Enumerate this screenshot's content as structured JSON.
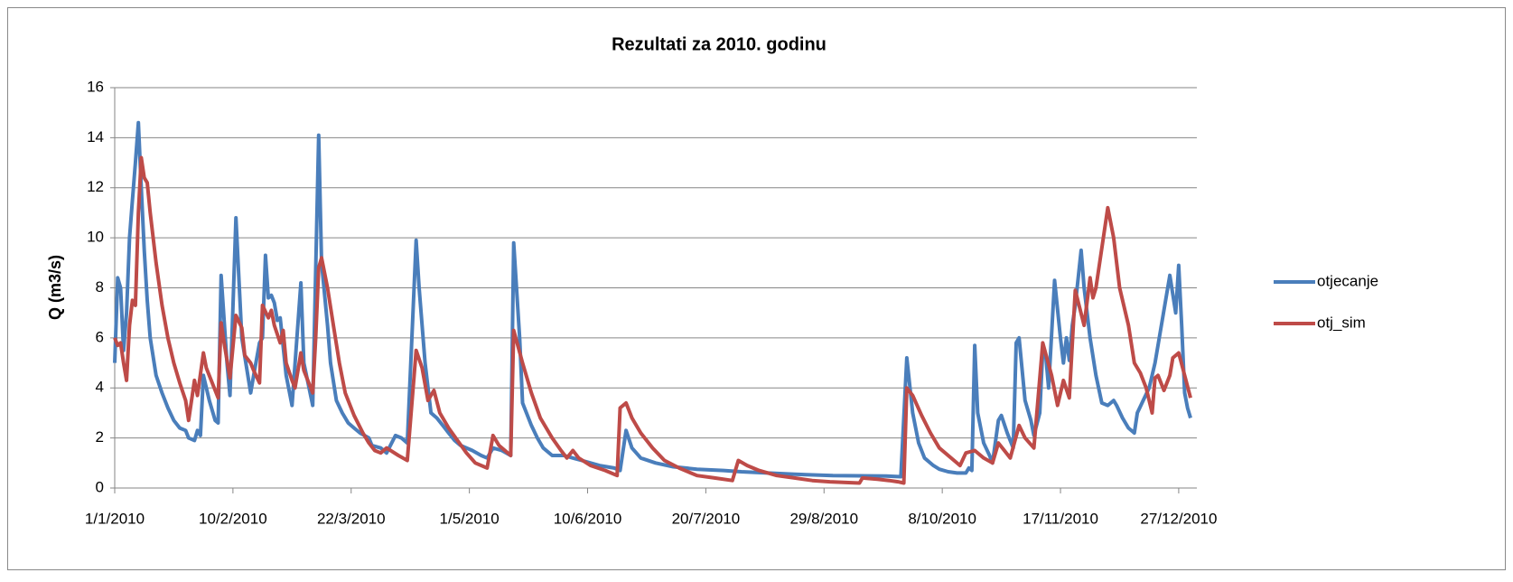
{
  "chart_data": {
    "type": "line",
    "title": "Rezultati za 2010. godinu",
    "y_label": "Q (m3/s)",
    "xlim": [
      "1/1/2010",
      "31/12/2010"
    ],
    "xticks": [
      "1/1/2010",
      "10/2/2010",
      "22/3/2010",
      "1/5/2010",
      "10/6/2010",
      "20/7/2010",
      "29/8/2010",
      "8/10/2010",
      "17/11/2010",
      "27/12/2010"
    ],
    "ylim": [
      0,
      16
    ],
    "yticks": [
      0,
      2,
      4,
      6,
      8,
      10,
      12,
      14,
      16
    ],
    "grid": true,
    "legend": "right",
    "series": [
      {
        "name": "otjecanje",
        "color": "#4a7ebb",
        "x": [
          "1/1/2010",
          "2/1/2010",
          "3/1/2010",
          "4/1/2010",
          "5/1/2010",
          "6/1/2010",
          "7/1/2010",
          "8/1/2010",
          "9/1/2010",
          "10/1/2010",
          "11/1/2010",
          "12/1/2010",
          "13/1/2010",
          "15/1/2010",
          "17/1/2010",
          "19/1/2010",
          "21/1/2010",
          "23/1/2010",
          "25/1/2010",
          "26/1/2010",
          "28/1/2010",
          "29/1/2010",
          "30/1/2010",
          "31/1/2010",
          "2/2/2010",
          "4/2/2010",
          "5/2/2010",
          "6/2/2010",
          "8/2/2010",
          "9/2/2010",
          "11/2/2010",
          "13/2/2010",
          "16/2/2010",
          "17/2/2010",
          "19/2/2010",
          "20/2/2010",
          "21/2/2010",
          "22/2/2010",
          "23/2/2010",
          "24/2/2010",
          "25/2/2010",
          "26/2/2010",
          "28/2/2010",
          "2/3/2010",
          "5/3/2010",
          "6/3/2010",
          "9/3/2010",
          "11/3/2010",
          "12/3/2010",
          "14/3/2010",
          "15/3/2010",
          "17/3/2010",
          "19/3/2010",
          "21/3/2010",
          "23/3/2010",
          "25/3/2010",
          "28/3/2010",
          "29/3/2010",
          "1/4/2010",
          "3/4/2010",
          "6/4/2010",
          "8/4/2010",
          "10/4/2010",
          "13/4/2010",
          "14/4/2010",
          "16/4/2010",
          "18/4/2010",
          "20/4/2010",
          "22/4/2010",
          "24/4/2010",
          "26/4/2010",
          "28/4/2010",
          "2/5/2010",
          "5/5/2010",
          "7/5/2010",
          "9/5/2010",
          "12/5/2010",
          "15/5/2010",
          "16/5/2010",
          "18/5/2010",
          "19/5/2010",
          "22/5/2010",
          "24/5/2010",
          "26/5/2010",
          "29/5/2010",
          "2/6/2010",
          "5/6/2010",
          "8/6/2010",
          "11/6/2010",
          "14/6/2010",
          "19/6/2010",
          "21/6/2010",
          "23/6/2010",
          "25/6/2010",
          "28/6/2010",
          "3/7/2010",
          "9/7/2010",
          "17/7/2010",
          "26/7/2010",
          "1/8/2010",
          "10/8/2010",
          "19/8/2010",
          "1/9/2010",
          "19/9/2010",
          "24/9/2010",
          "26/9/2010",
          "28/9/2010",
          "30/9/2010",
          "2/10/2010",
          "5/10/2010",
          "7/10/2010",
          "10/10/2010",
          "13/10/2010",
          "16/10/2010",
          "17/10/2010",
          "18/10/2010",
          "19/10/2010",
          "20/10/2010",
          "22/10/2010",
          "24/10/2010",
          "25/10/2010",
          "27/10/2010",
          "28/10/2010",
          "30/10/2010",
          "1/11/2010",
          "2/11/2010",
          "3/11/2010",
          "5/11/2010",
          "7/11/2010",
          "8/11/2010",
          "10/11/2010",
          "11/11/2010",
          "12/11/2010",
          "13/11/2010",
          "15/11/2010",
          "17/11/2010",
          "18/11/2010",
          "19/11/2010",
          "20/11/2010",
          "21/11/2010",
          "22/11/2010",
          "24/11/2010",
          "25/11/2010",
          "27/11/2010",
          "29/11/2010",
          "1/12/2010",
          "3/12/2010",
          "5/12/2010",
          "6/12/2010",
          "8/12/2010",
          "10/12/2010",
          "12/12/2010",
          "13/12/2010",
          "15/12/2010",
          "17/12/2010",
          "19/12/2010",
          "24/12/2010",
          "26/12/2010",
          "27/12/2010",
          "28/12/2010",
          "29/12/2010",
          "30/12/2010",
          "31/12/2010"
        ],
        "values": [
          5.0,
          8.4,
          8.0,
          5.5,
          7.0,
          10.0,
          11.5,
          13.0,
          14.6,
          12.0,
          9.5,
          7.5,
          6.0,
          4.5,
          3.8,
          3.2,
          2.7,
          2.4,
          2.3,
          2.0,
          1.9,
          2.3,
          2.1,
          4.5,
          3.5,
          2.7,
          2.6,
          8.5,
          5.0,
          3.7,
          10.8,
          6.0,
          3.8,
          4.5,
          5.8,
          6.0,
          9.3,
          7.6,
          7.7,
          7.4,
          6.7,
          6.8,
          4.5,
          3.3,
          8.2,
          5.0,
          3.3,
          14.1,
          9.0,
          6.5,
          5.0,
          3.5,
          3.0,
          2.6,
          2.4,
          2.2,
          2.0,
          1.7,
          1.6,
          1.4,
          2.1,
          2.0,
          1.8,
          9.9,
          8.0,
          5.0,
          3.0,
          2.8,
          2.5,
          2.2,
          1.9,
          1.7,
          1.5,
          1.3,
          1.2,
          1.6,
          1.5,
          1.3,
          9.8,
          6.0,
          3.4,
          2.5,
          2.0,
          1.6,
          1.3,
          1.3,
          1.2,
          1.1,
          1.0,
          0.9,
          0.8,
          0.7,
          2.3,
          1.6,
          1.2,
          1.0,
          0.85,
          0.75,
          0.7,
          0.65,
          0.6,
          0.55,
          0.5,
          0.48,
          0.45,
          5.2,
          3.0,
          1.8,
          1.2,
          0.9,
          0.75,
          0.65,
          0.6,
          0.6,
          0.8,
          0.7,
          5.7,
          3.0,
          1.8,
          1.3,
          1.0,
          2.7,
          2.9,
          2.2,
          1.6,
          5.8,
          6.0,
          3.5,
          2.7,
          2.1,
          3.0,
          5.5,
          5.3,
          4.0,
          8.3,
          6.0,
          5.0,
          6.0,
          5.1,
          6.5,
          7.3,
          9.5,
          8.0,
          6.0,
          4.5,
          3.4,
          3.3,
          3.5,
          3.3,
          2.8,
          2.4,
          2.2,
          3.0,
          3.5,
          4.0,
          5.0,
          8.5,
          7.0,
          8.9,
          6.5,
          3.8,
          3.2,
          2.8
        ]
      },
      {
        "name": "otj_sim",
        "color": "#be4b48",
        "x": [
          "1/1/2010",
          "2/1/2010",
          "3/1/2010",
          "4/1/2010",
          "5/1/2010",
          "6/1/2010",
          "7/1/2010",
          "8/1/2010",
          "9/1/2010",
          "10/1/2010",
          "11/1/2010",
          "12/1/2010",
          "13/1/2010",
          "15/1/2010",
          "17/1/2010",
          "19/1/2010",
          "21/1/2010",
          "23/1/2010",
          "25/1/2010",
          "26/1/2010",
          "28/1/2010",
          "29/1/2010",
          "31/1/2010",
          "1/2/2010",
          "5/2/2010",
          "6/2/2010",
          "7/2/2010",
          "9/2/2010",
          "11/2/2010",
          "13/2/2010",
          "14/2/2010",
          "16/2/2010",
          "17/2/2010",
          "19/2/2010",
          "20/2/2010",
          "22/2/2010",
          "23/2/2010",
          "24/2/2010",
          "26/2/2010",
          "27/2/2010",
          "28/2/2010",
          "2/3/2010",
          "3/3/2010",
          "5/3/2010",
          "6/3/2010",
          "9/3/2010",
          "10/3/2010",
          "11/3/2010",
          "12/3/2010",
          "14/3/2010",
          "16/3/2010",
          "18/3/2010",
          "20/3/2010",
          "23/3/2010",
          "26/3/2010",
          "28/3/2010",
          "30/3/2010",
          "1/4/2010",
          "3/4/2010",
          "7/4/2010",
          "10/4/2010",
          "13/4/2010",
          "15/4/2010",
          "17/4/2010",
          "19/4/2010",
          "21/4/2010",
          "24/4/2010",
          "27/4/2010",
          "30/4/2010",
          "3/5/2010",
          "7/5/2010",
          "9/5/2010",
          "11/5/2010",
          "15/5/2010",
          "16/5/2010",
          "19/5/2010",
          "22/5/2010",
          "25/5/2010",
          "29/5/2010",
          "1/6/2010",
          "3/6/2010",
          "5/6/2010",
          "7/6/2010",
          "11/6/2010",
          "16/6/2010",
          "20/6/2010",
          "21/6/2010",
          "23/6/2010",
          "25/6/2010",
          "28/6/2010",
          "2/7/2010",
          "6/7/2010",
          "11/7/2010",
          "17/7/2010",
          "23/7/2010",
          "29/7/2010",
          "31/7/2010",
          "3/8/2010",
          "7/8/2010",
          "13/8/2010",
          "19/8/2010",
          "25/8/2010",
          "31/8/2010",
          "10/9/2010",
          "11/9/2010",
          "16/9/2010",
          "20/9/2010",
          "23/9/2010",
          "25/9/2010",
          "26/9/2010",
          "28/9/2010",
          "1/10/2010",
          "4/10/2010",
          "7/10/2010",
          "12/10/2010",
          "14/10/2010",
          "16/10/2010",
          "19/10/2010",
          "22/10/2010",
          "25/10/2010",
          "27/10/2010",
          "29/10/2010",
          "31/10/2010",
          "3/11/2010",
          "5/11/2010",
          "8/11/2010",
          "11/11/2010",
          "14/11/2010",
          "16/11/2010",
          "18/11/2010",
          "20/11/2010",
          "22/11/2010",
          "25/11/2010",
          "27/11/2010",
          "28/11/2010",
          "29/11/2010",
          "3/12/2010",
          "5/12/2010",
          "7/12/2010",
          "10/12/2010",
          "12/12/2010",
          "14/12/2010",
          "16/12/2010",
          "18/12/2010",
          "19/12/2010",
          "20/12/2010",
          "22/12/2010",
          "24/12/2010",
          "25/12/2010",
          "27/12/2010",
          "29/12/2010",
          "31/12/2010"
        ],
        "values": [
          6.0,
          5.7,
          5.8,
          5.0,
          4.3,
          6.5,
          7.5,
          7.3,
          11.0,
          13.2,
          12.4,
          12.2,
          11.0,
          9.0,
          7.3,
          6.0,
          5.0,
          4.2,
          3.5,
          2.7,
          4.3,
          3.7,
          5.4,
          4.8,
          3.6,
          6.6,
          5.8,
          4.4,
          6.9,
          6.4,
          5.3,
          5.0,
          4.7,
          4.2,
          7.3,
          6.8,
          7.1,
          6.5,
          5.8,
          6.3,
          5.0,
          4.3,
          4.0,
          5.4,
          4.7,
          3.8,
          6.0,
          8.8,
          9.2,
          8.0,
          6.5,
          5.0,
          3.8,
          2.9,
          2.2,
          1.8,
          1.5,
          1.4,
          1.6,
          1.3,
          1.1,
          5.5,
          4.8,
          3.5,
          3.9,
          3.0,
          2.4,
          1.9,
          1.4,
          1.0,
          0.8,
          2.1,
          1.7,
          1.3,
          6.3,
          5.0,
          3.8,
          2.8,
          2.0,
          1.5,
          1.2,
          1.5,
          1.2,
          0.9,
          0.7,
          0.5,
          3.2,
          3.4,
          2.8,
          2.2,
          1.6,
          1.1,
          0.8,
          0.5,
          0.4,
          0.3,
          1.1,
          0.9,
          0.7,
          0.5,
          0.4,
          0.3,
          0.25,
          0.2,
          0.4,
          0.35,
          0.3,
          0.25,
          0.2,
          4.0,
          3.7,
          2.9,
          2.2,
          1.6,
          1.1,
          0.9,
          1.4,
          1.5,
          1.2,
          1.0,
          1.8,
          1.5,
          1.2,
          2.5,
          2.0,
          1.6,
          5.8,
          4.5,
          3.3,
          4.3,
          3.6,
          7.9,
          6.5,
          8.4,
          7.6,
          8.0,
          11.2,
          10.0,
          8.0,
          6.5,
          5.0,
          4.6,
          4.0,
          3.0,
          4.4,
          4.5,
          3.9,
          4.5,
          5.2,
          5.4,
          4.5,
          3.6
        ]
      }
    ]
  }
}
